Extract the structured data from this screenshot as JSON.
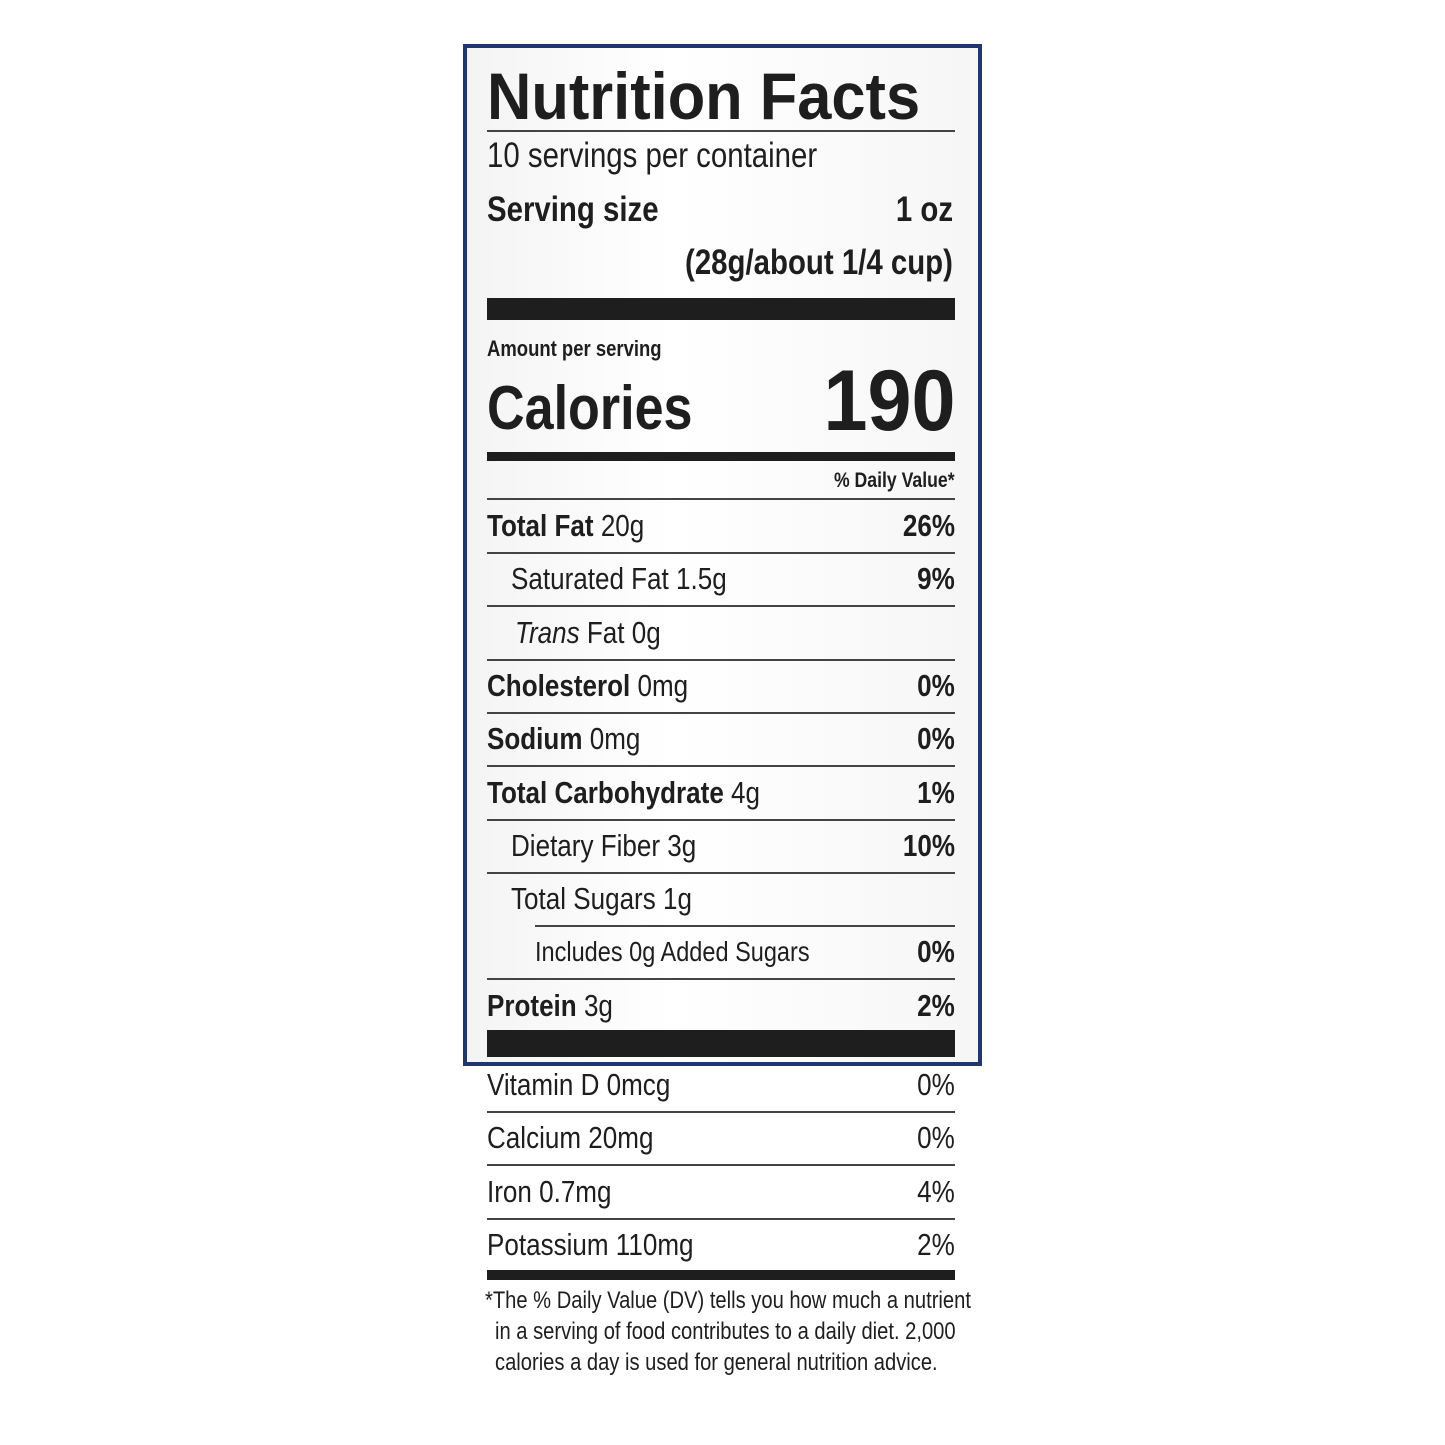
{
  "title": "Nutrition Facts",
  "servings": "10 servings per container",
  "serving_size": {
    "label": "Serving size",
    "amount": "1 oz",
    "detail": "(28g/about 1/4 cup)"
  },
  "amount_per_serving": "Amount per serving",
  "calories": {
    "label": "Calories",
    "value": "190"
  },
  "daily_value_header": "% Daily Value*",
  "nutrients": [
    {
      "name": "Total Fat",
      "amount": "20g",
      "dv": "26%"
    },
    {
      "name": "Saturated Fat",
      "amount": "1.5g",
      "dv": "9%"
    },
    {
      "name": "Trans",
      "amount": "Fat 0g"
    },
    {
      "name": "Cholesterol",
      "amount": "0mg",
      "dv": "0%"
    },
    {
      "name": "Sodium",
      "amount": "0mg",
      "dv": "0%"
    },
    {
      "name": "Total Carbohydrate",
      "amount": "4g",
      "dv": "1%"
    },
    {
      "name": "Dietary Fiber",
      "amount": "3g",
      "dv": "10%"
    },
    {
      "name": "Total Sugars",
      "amount": "1g"
    },
    {
      "name": "Includes 0g Added Sugars",
      "dv": "0%"
    },
    {
      "name": "Protein",
      "amount": "3g",
      "dv": "2%"
    }
  ],
  "vitamins": [
    {
      "name": "Vitamin D 0mcg",
      "dv": "0%"
    },
    {
      "name": "Calcium 20mg",
      "dv": "0%"
    },
    {
      "name": "Iron 0.7mg",
      "dv": "4%"
    },
    {
      "name": "Potassium 110mg",
      "dv": "2%"
    }
  ],
  "footnote": [
    "*The % Daily Value (DV) tells you how much a nutrient",
    "in a serving of food contributes to a daily diet. 2,000",
    "calories a day is used for general nutrition advice."
  ]
}
